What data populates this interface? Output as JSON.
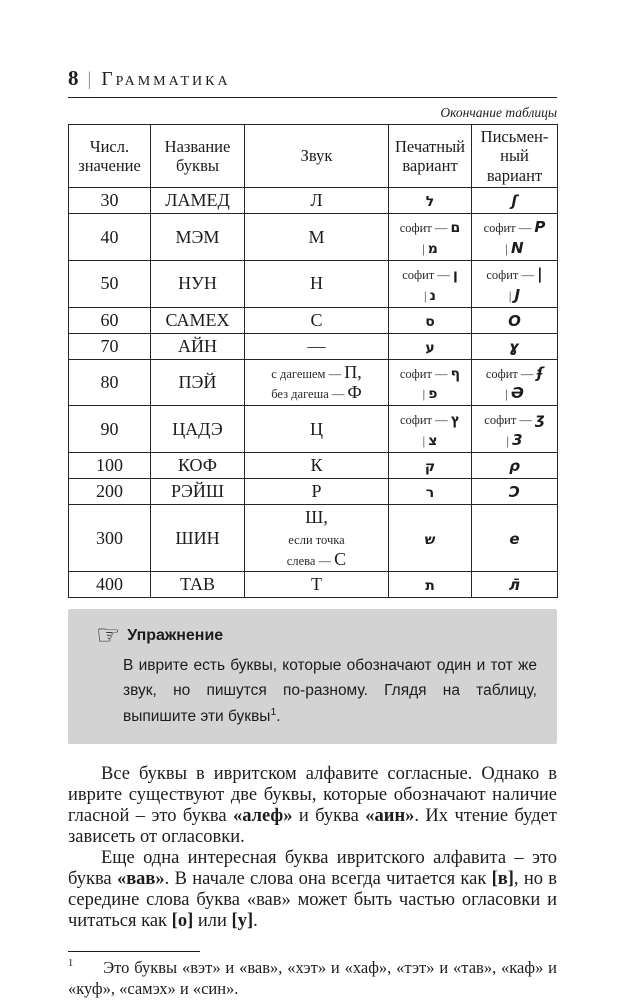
{
  "header": {
    "page_number": "8",
    "separator": "|",
    "title": "Грамматика"
  },
  "table": {
    "continuation_note": "Окончание таблицы",
    "columns": [
      "Числ.\nзначение",
      "Название\nбуквы",
      "Звук",
      "Печатный\nвариант",
      "Письмен-\nный вариант"
    ],
    "rows": [
      {
        "value": "30",
        "name": "ЛАМЕД",
        "sound": [
          [
            {
              "t": "Л"
            }
          ]
        ],
        "print": [
          [
            {
              "t": "ל",
              "kind": "letter-print"
            }
          ]
        ],
        "written": [
          [
            {
              "t": "ʃ",
              "kind": "letter-script"
            }
          ]
        ]
      },
      {
        "value": "40",
        "name": "МЭМ",
        "sound": [
          [
            {
              "t": "М"
            }
          ]
        ],
        "print": [
          [
            {
              "t": "софит — ",
              "kind": "small"
            },
            {
              "t": "ם",
              "kind": "letter-print"
            }
          ],
          [
            {
              "t": "| ",
              "kind": "small"
            },
            {
              "t": "מ",
              "kind": "letter-print"
            }
          ]
        ],
        "written": [
          [
            {
              "t": "софит — ",
              "kind": "small"
            },
            {
              "t": "P",
              "kind": "letter-script"
            }
          ],
          [
            {
              "t": "| ",
              "kind": "small"
            },
            {
              "t": "N",
              "kind": "letter-script"
            }
          ]
        ]
      },
      {
        "value": "50",
        "name": "НУН",
        "sound": [
          [
            {
              "t": "Н"
            }
          ]
        ],
        "print": [
          [
            {
              "t": "софит — ",
              "kind": "small"
            },
            {
              "t": "ן",
              "kind": "letter-print"
            }
          ],
          [
            {
              "t": "| ",
              "kind": "small"
            },
            {
              "t": "נ",
              "kind": "letter-print"
            }
          ]
        ],
        "written": [
          [
            {
              "t": "софит — ",
              "kind": "small"
            },
            {
              "t": "|",
              "kind": "letter-script"
            }
          ],
          [
            {
              "t": "| ",
              "kind": "small"
            },
            {
              "t": "J",
              "kind": "letter-script"
            }
          ]
        ]
      },
      {
        "value": "60",
        "name": "САМЕХ",
        "sound": [
          [
            {
              "t": "С"
            }
          ]
        ],
        "print": [
          [
            {
              "t": "ס",
              "kind": "letter-print"
            }
          ]
        ],
        "written": [
          [
            {
              "t": "O",
              "kind": "letter-script"
            }
          ]
        ]
      },
      {
        "value": "70",
        "name": "АЙН",
        "sound": [
          [
            {
              "t": "—"
            }
          ]
        ],
        "print": [
          [
            {
              "t": "ע",
              "kind": "letter-print"
            }
          ]
        ],
        "written": [
          [
            {
              "t": "ɣ",
              "kind": "letter-script"
            }
          ]
        ]
      },
      {
        "value": "80",
        "name": "ПЭЙ",
        "sound": [
          [
            {
              "t": "с дагешем — ",
              "kind": "small"
            },
            {
              "t": "П,"
            }
          ],
          [
            {
              "t": "без дагеша — ",
              "kind": "small"
            },
            {
              "t": "Ф"
            }
          ]
        ],
        "print": [
          [
            {
              "t": "софит — ",
              "kind": "small"
            },
            {
              "t": "ף",
              "kind": "letter-print"
            }
          ],
          [
            {
              "t": "| ",
              "kind": "small"
            },
            {
              "t": "פ",
              "kind": "letter-print"
            }
          ]
        ],
        "written": [
          [
            {
              "t": "софит — ",
              "kind": "small"
            },
            {
              "t": "ʄ",
              "kind": "letter-script"
            }
          ],
          [
            {
              "t": "| ",
              "kind": "small"
            },
            {
              "t": "Ə",
              "kind": "letter-script"
            }
          ]
        ]
      },
      {
        "value": "90",
        "name": "ЦАДЭ",
        "sound": [
          [
            {
              "t": "Ц"
            }
          ]
        ],
        "print": [
          [
            {
              "t": "софит — ",
              "kind": "small"
            },
            {
              "t": "ץ",
              "kind": "letter-print"
            }
          ],
          [
            {
              "t": "| ",
              "kind": "small"
            },
            {
              "t": "צ",
              "kind": "letter-print"
            }
          ]
        ],
        "written": [
          [
            {
              "t": "софит — ",
              "kind": "small"
            },
            {
              "t": "ʒ",
              "kind": "letter-script"
            }
          ],
          [
            {
              "t": "| ",
              "kind": "small"
            },
            {
              "t": "3",
              "kind": "letter-script"
            }
          ]
        ]
      },
      {
        "value": "100",
        "name": "КОФ",
        "sound": [
          [
            {
              "t": "К"
            }
          ]
        ],
        "print": [
          [
            {
              "t": "ק",
              "kind": "letter-print"
            }
          ]
        ],
        "written": [
          [
            {
              "t": "ρ",
              "kind": "letter-script"
            }
          ]
        ]
      },
      {
        "value": "200",
        "name": "РЭЙШ",
        "sound": [
          [
            {
              "t": "Р"
            }
          ]
        ],
        "print": [
          [
            {
              "t": "ר",
              "kind": "letter-print"
            }
          ]
        ],
        "written": [
          [
            {
              "t": "Ɔ",
              "kind": "letter-script"
            }
          ]
        ]
      },
      {
        "value": "300",
        "name": "ШИН",
        "sound": [
          [
            {
              "t": "Ш,"
            }
          ],
          [
            {
              "t": "если точка",
              "kind": "small"
            }
          ],
          [
            {
              "t": "слева — ",
              "kind": "small"
            },
            {
              "t": "С"
            }
          ]
        ],
        "print": [
          [
            {
              "t": "ש",
              "kind": "letter-print"
            }
          ]
        ],
        "written": [
          [
            {
              "t": "e",
              "kind": "letter-script"
            }
          ]
        ]
      },
      {
        "value": "400",
        "name": "ТАВ",
        "sound": [
          [
            {
              "t": "Т"
            }
          ]
        ],
        "print": [
          [
            {
              "t": "ת",
              "kind": "letter-print"
            }
          ]
        ],
        "written": [
          [
            {
              "t": "л̄",
              "kind": "letter-script"
            }
          ]
        ]
      }
    ]
  },
  "exercise": {
    "icon": "pointing-hand-icon",
    "icon_glyph": "☞",
    "title": "Упражнение",
    "text": [
      {
        "t": "В иврите есть буквы, которые обозначают один и тот же звук, но пишутся по-разному. Глядя на таблицу, выпишите эти буквы"
      },
      {
        "t": "1",
        "sup": true
      },
      {
        "t": "."
      }
    ]
  },
  "paragraphs": [
    {
      "segments": [
        {
          "t": "Все буквы в ивритском алфавите согласные. Однако в иврите существуют две буквы, которые обозначают наличие гласной – это буква "
        },
        {
          "t": "«алеф»",
          "bold": true
        },
        {
          "t": " и буква "
        },
        {
          "t": "«аин»",
          "bold": true
        },
        {
          "t": ". Их чтение будет зависеть от огласовки."
        }
      ]
    },
    {
      "segments": [
        {
          "t": "Еще одна интересная буква ивритского алфавита – это буква "
        },
        {
          "t": "«вав»",
          "bold": true
        },
        {
          "t": ". В начале слова она всегда читается как "
        },
        {
          "t": "[в]",
          "bold": true
        },
        {
          "t": ", но в середине слова буква «вав» может быть частью огласовки и читаться как "
        },
        {
          "t": "[о]",
          "bold": true
        },
        {
          "t": " или "
        },
        {
          "t": "[у]",
          "bold": true
        },
        {
          "t": "."
        }
      ]
    }
  ],
  "footnote": {
    "segments": [
      {
        "t": "1",
        "sup": true,
        "gap": true
      },
      {
        "t": "Это буквы «вэт» и «вав», «хэт» и «хаф», «тэт» и «тав», «каф» и «куф», «самэх» и «син»."
      }
    ]
  },
  "colors": {
    "box_background": "#d3d3d3",
    "text": "#1c1c1c",
    "table_border": "#262626"
  }
}
